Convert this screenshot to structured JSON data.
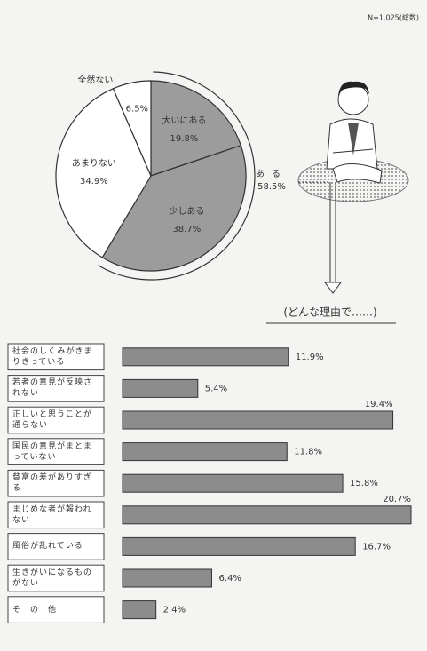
{
  "note": "N=1,025(総数)",
  "chart_data": [
    {
      "type": "pie",
      "categories": [
        "大いにある",
        "少しある",
        "あまりない",
        "全然ない"
      ],
      "values": [
        19.8,
        38.7,
        34.9,
        6.5
      ],
      "value_labels": [
        "19.8%",
        "38.7%",
        "34.9%",
        "6.5%"
      ],
      "colors": [
        "#9c9c9c",
        "#9c9c9c",
        "#ffffff",
        "#ffffff"
      ],
      "group": {
        "name": "ある",
        "value": 58.5,
        "value_label": "58.5%"
      }
    },
    {
      "type": "hbar",
      "title": "(どんな理由で……)",
      "categories": [
        "社会のしくみがきまりきっている",
        "若者の意見が反映されない",
        "正しいと思うことが通らない",
        "国民の意見がまとまっていない",
        "貧富の差がありすぎる",
        "まじめな者が報われない",
        "風俗が乱れている",
        "生きがいになるものがない",
        "そ　の　他"
      ],
      "values": [
        11.9,
        5.4,
        19.4,
        11.8,
        15.8,
        20.7,
        16.7,
        6.4,
        2.4
      ],
      "value_labels": [
        "11.9%",
        "5.4%",
        "19.4%",
        "11.8%",
        "15.8%",
        "20.7%",
        "16.7%",
        "6.4%",
        "2.4%"
      ],
      "color": "#8c8c8c"
    }
  ]
}
